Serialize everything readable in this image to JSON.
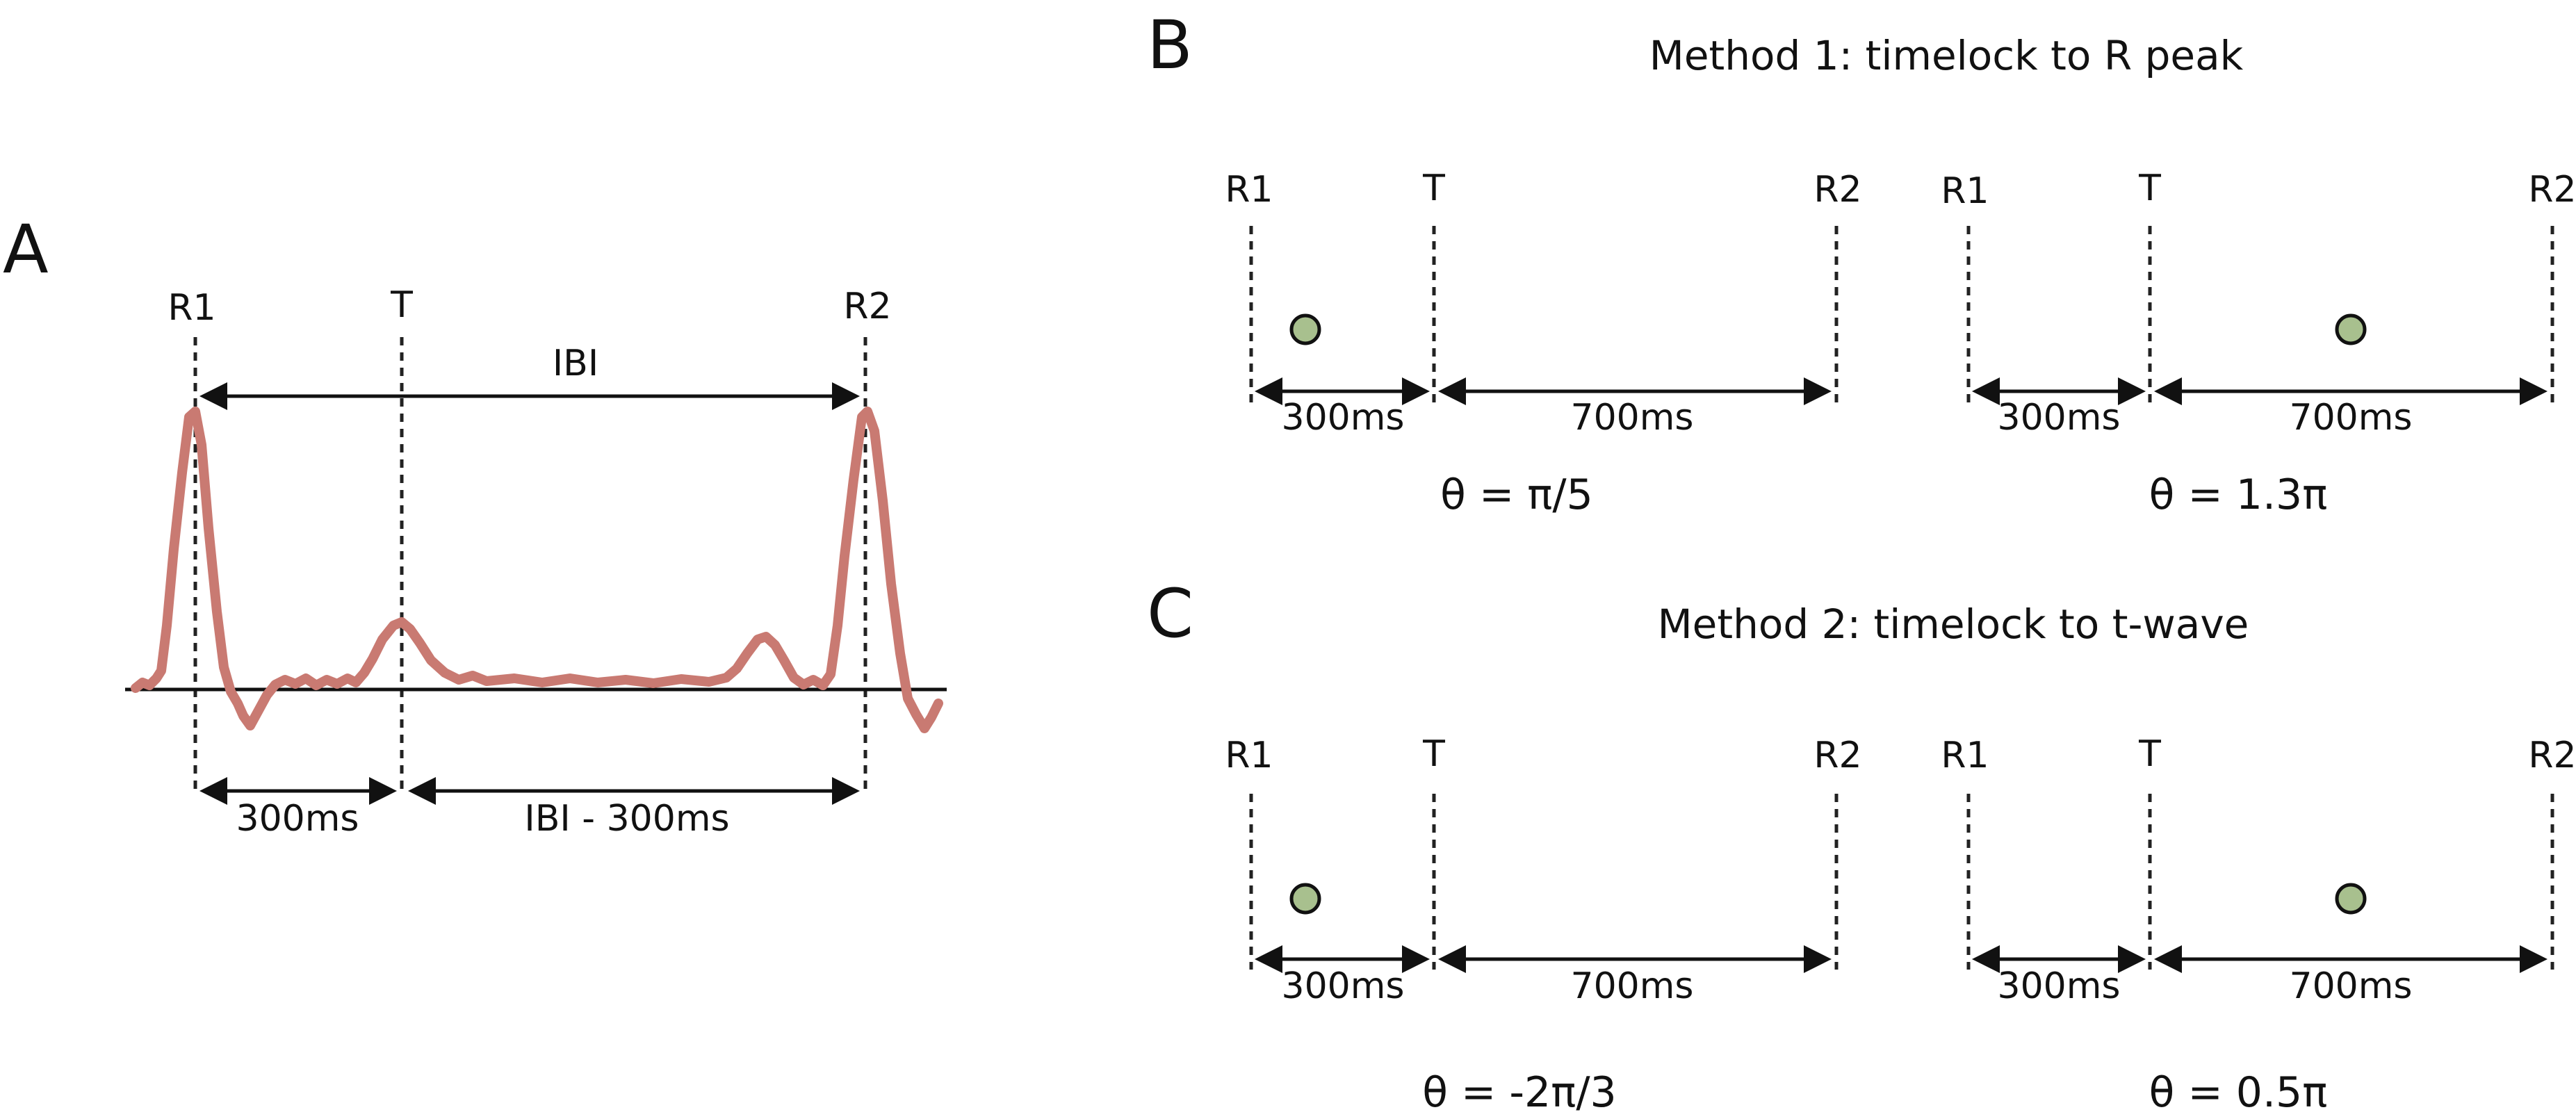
{
  "colors": {
    "ecg_trace": "#c97a72",
    "dot_fill": "#a8c08e",
    "ink": "#111111"
  },
  "panel_a": {
    "letter": "A",
    "r1": "R1",
    "t": "T",
    "r2": "R2",
    "ibi": "IBI",
    "seg1": "300ms",
    "seg2": "IBI - 300ms"
  },
  "panel_b": {
    "letter": "B",
    "title": "Method 1: timelock to R peak",
    "left": {
      "r1": "R1",
      "t": "T",
      "r2": "R2",
      "seg1": "300ms",
      "seg2": "700ms",
      "theta": "θ = π/5"
    },
    "right": {
      "r1": "R1",
      "t": "T",
      "r2": "R2",
      "seg1": "300ms",
      "seg2": "700ms",
      "theta": "θ = 1.3π"
    }
  },
  "panel_c": {
    "letter": "C",
    "title": "Method 2: timelock to t-wave",
    "left": {
      "r1": "R1",
      "t": "T",
      "r2": "R2",
      "seg1": "300ms",
      "seg2": "700ms",
      "theta": "θ = -2π/3"
    },
    "right": {
      "r1": "R1",
      "t": "T",
      "r2": "R2",
      "seg1": "300ms",
      "seg2": "700ms",
      "theta": "θ = 0.5π"
    }
  }
}
